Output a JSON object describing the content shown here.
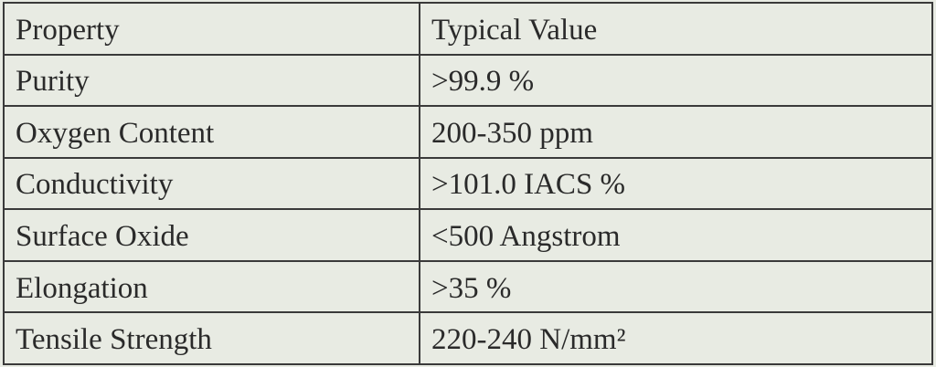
{
  "table": {
    "header": [
      "Property",
      "Typical Value"
    ],
    "rows": [
      [
        "Purity",
        ">99.9 %"
      ],
      [
        "Oxygen Content",
        "200-350 ppm"
      ],
      [
        "Conductivity",
        ">101.0 IACS %"
      ],
      [
        "Surface Oxide",
        "<500 Angstrom"
      ],
      [
        "Elongation",
        ">35 %"
      ],
      [
        "Tensile Strength",
        "220-240 N/mm²"
      ]
    ]
  }
}
